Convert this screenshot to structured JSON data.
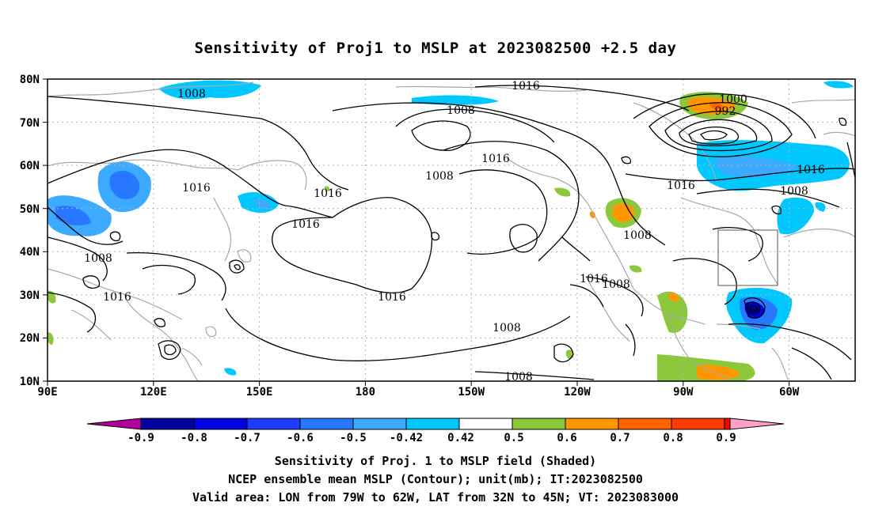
{
  "title": "Sensitivity of Proj1 to MSLP at 2023082500 +2.5 day",
  "lat_labels": [
    "80N",
    "70N",
    "60N",
    "50N",
    "40N",
    "30N",
    "20N",
    "10N"
  ],
  "lon_labels": [
    "90E",
    "120E",
    "150E",
    "180",
    "150W",
    "120W",
    "90W",
    "60W"
  ],
  "contour_labels": [
    "1008",
    "1016",
    "1008",
    "1016",
    "1000",
    "992",
    "1016",
    "1008",
    "1016",
    "1016",
    "1008",
    "1016",
    "1016",
    "1008",
    "1008",
    "1016",
    "1008",
    "1016",
    "1016",
    "1008",
    "1008"
  ],
  "colorbar": {
    "labels": [
      "-0.9",
      "-0.8",
      "-0.7",
      "-0.6",
      "-0.5",
      "-0.42",
      "0.42",
      "0.5",
      "0.6",
      "0.7",
      "0.8",
      "0.9"
    ],
    "colors": [
      "#b0009a",
      "#00009e",
      "#0000e0",
      "#1e3cff",
      "#2878ff",
      "#3caaff",
      "#00c8ff",
      "#ffffff",
      "#8cc83c",
      "#ff9600",
      "#ff6400",
      "#ff3c00",
      "#ff0000",
      "#ffa0c8"
    ]
  },
  "footer": {
    "line1": "Sensitivity of Proj. 1 to MSLP field (Shaded)",
    "line2": "NCEP ensemble mean MSLP (Contour); unit(mb); IT:2023082500",
    "line3": "Valid area: LON from 79W to 62W, LAT from 32N to 45N; VT: 2023083000"
  }
}
